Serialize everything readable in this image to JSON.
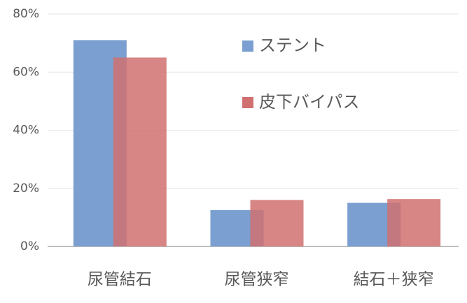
{
  "chart_data": {
    "type": "bar",
    "categories": [
      "尿管結石",
      "尿管狭窄",
      "結石＋狭窄"
    ],
    "series": [
      {
        "name": "ステント",
        "color": "#7b9fd0",
        "values": [
          71,
          12.5,
          15
        ]
      },
      {
        "name": "皮下バイパス",
        "color": "#d07070",
        "values": [
          65,
          16,
          16.3
        ]
      }
    ],
    "ylim": [
      0,
      80
    ],
    "yticks": [
      {
        "value": 0,
        "label": "0%"
      },
      {
        "value": 20,
        "label": "20%"
      },
      {
        "value": 40,
        "label": "40%"
      },
      {
        "value": 60,
        "label": "60%"
      },
      {
        "value": 80,
        "label": "80%"
      }
    ],
    "grid": true
  }
}
